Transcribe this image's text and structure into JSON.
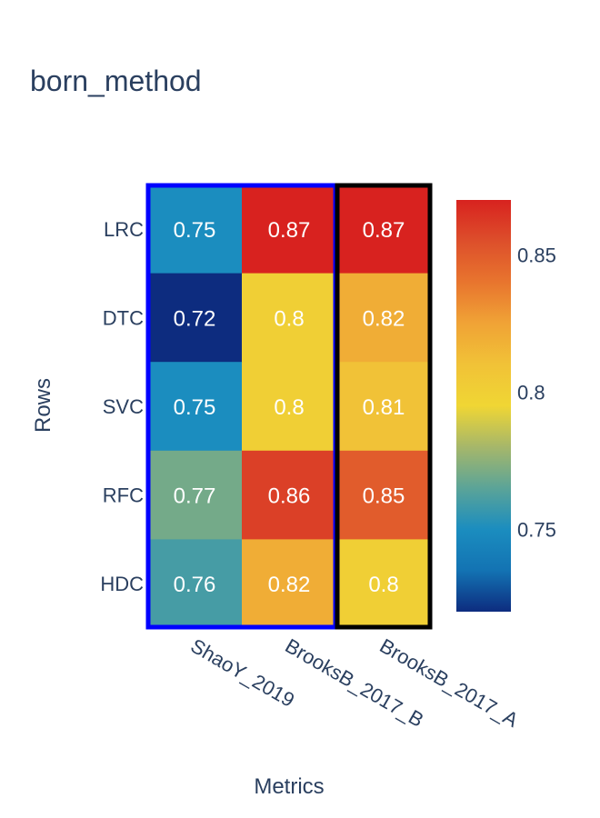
{
  "chart_data": {
    "type": "heatmap",
    "title": "born_method",
    "xlabel": "Metrics",
    "ylabel": "Rows",
    "x_categories": [
      "ShaoY_2019",
      "BrooksB_2017_B",
      "BrooksB_2017_A"
    ],
    "y_categories": [
      "LRC",
      "DTC",
      "SVC",
      "RFC",
      "HDC"
    ],
    "values": [
      [
        0.75,
        0.87,
        0.87
      ],
      [
        0.72,
        0.8,
        0.82
      ],
      [
        0.75,
        0.8,
        0.81
      ],
      [
        0.77,
        0.86,
        0.85
      ],
      [
        0.76,
        0.82,
        0.8
      ]
    ],
    "colorscale": {
      "min": 0.72,
      "max": 0.87,
      "stops": [
        "#0d2c7f",
        "#1373b3",
        "#1b8dbf",
        "#5ba498",
        "#a6b76a",
        "#f0d634",
        "#f1c237",
        "#f0a336",
        "#e8752e",
        "#dd4f2b",
        "#d8221f"
      ]
    },
    "colorbar": {
      "ticks": [
        0.75,
        0.8,
        0.85
      ],
      "tick_labels": [
        "0.75",
        "0.8",
        "0.85"
      ]
    },
    "highlight_boxes": [
      {
        "columns": [
          "ShaoY_2019",
          "BrooksB_2017_B"
        ],
        "color": "#0000ff"
      },
      {
        "columns": [
          "BrooksB_2017_A"
        ],
        "color": "#000000"
      }
    ],
    "text_color": "#2a3f5f"
  }
}
